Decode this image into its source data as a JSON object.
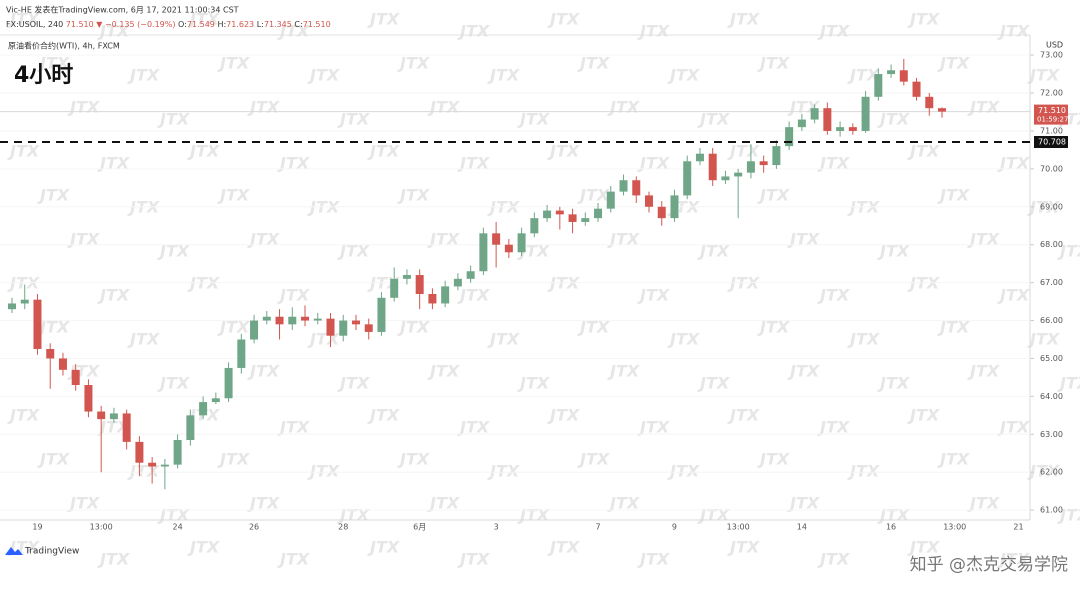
{
  "header": {
    "author_line": "Vic-HE 发表在TradingView.com, 6月 17, 2021 11:00:34 CST",
    "symbol": "FX:USOIL, 240",
    "last": "71.510",
    "change": "▼ −0.135 (−0.19%)",
    "ohlc": [
      {
        "key": "O:",
        "value": "71.549"
      },
      {
        "key": "H:",
        "value": "71.623"
      },
      {
        "key": "L:",
        "value": "71.345"
      },
      {
        "key": "C:",
        "value": "71.510"
      }
    ]
  },
  "chart_data": {
    "type": "candlestick",
    "title": "原油看价合约(WTI), 4h, FXCM",
    "annotation": "4小时",
    "y_axis_label": "USD",
    "watermark": "JTX",
    "up_color": "#6fa687",
    "down_color": "#d2564f",
    "grid": true,
    "categories": [
      null,
      null,
      "19",
      null,
      null,
      null,
      null,
      "13:00",
      null,
      null,
      null,
      null,
      null,
      "24",
      null,
      null,
      null,
      null,
      null,
      "26",
      null,
      null,
      null,
      null,
      null,
      null,
      "28",
      null,
      null,
      null,
      null,
      null,
      "6月",
      null,
      null,
      null,
      null,
      null,
      "3",
      null,
      null,
      null,
      null,
      null,
      null,
      null,
      "7",
      null,
      null,
      null,
      null,
      null,
      "9",
      null,
      null,
      null,
      null,
      "13:00",
      null,
      null,
      null,
      null,
      "14",
      null,
      null,
      null,
      null,
      null,
      null,
      "16",
      null,
      null,
      null,
      null
    ],
    "future_categories": [
      "13:00",
      null,
      null,
      null,
      null,
      "21"
    ],
    "open": [
      66.3,
      66.45,
      66.55,
      65.25,
      65.0,
      64.7,
      64.3,
      63.6,
      63.4,
      63.55,
      62.8,
      62.25,
      62.15,
      62.2,
      62.85,
      63.5,
      63.85,
      63.95,
      64.75,
      65.5,
      66.0,
      66.1,
      65.9,
      66.1,
      66.0,
      66.05,
      65.6,
      66.0,
      65.9,
      65.7,
      66.6,
      67.1,
      67.2,
      66.7,
      66.45,
      66.9,
      67.1,
      67.3,
      68.3,
      68.0,
      67.8,
      68.3,
      68.7,
      68.9,
      68.8,
      68.6,
      68.7,
      68.95,
      69.4,
      69.7,
      69.3,
      69.0,
      68.7,
      69.3,
      70.2,
      70.4,
      69.7,
      69.8,
      69.9,
      70.2,
      70.1,
      70.6,
      71.1,
      71.3,
      71.6,
      71.0,
      71.1,
      71.0,
      71.9,
      72.5,
      72.6,
      72.3,
      71.9,
      71.6
    ],
    "high": [
      66.6,
      66.95,
      66.7,
      65.4,
      65.15,
      64.85,
      64.45,
      63.75,
      63.7,
      63.65,
      62.95,
      62.4,
      62.35,
      63.0,
      63.65,
      64.0,
      64.1,
      64.9,
      65.65,
      66.15,
      66.25,
      66.3,
      66.35,
      66.4,
      66.2,
      66.2,
      66.15,
      66.15,
      66.05,
      66.75,
      67.4,
      67.35,
      67.35,
      66.85,
      67.05,
      67.25,
      67.45,
      68.45,
      68.6,
      68.15,
      68.45,
      68.85,
      69.05,
      69.0,
      68.95,
      68.85,
      69.1,
      69.55,
      69.85,
      69.8,
      69.4,
      69.15,
      69.45,
      70.35,
      70.55,
      70.55,
      69.95,
      70.0,
      70.65,
      70.35,
      70.75,
      71.25,
      71.45,
      71.7,
      71.75,
      71.25,
      71.2,
      72.05,
      72.65,
      72.75,
      72.9,
      72.4,
      72.0,
      71.62
    ],
    "low": [
      66.2,
      66.3,
      65.1,
      64.2,
      64.55,
      64.15,
      63.45,
      62.0,
      63.3,
      62.6,
      61.9,
      61.7,
      61.55,
      62.1,
      62.7,
      63.4,
      63.8,
      63.85,
      64.6,
      65.4,
      65.9,
      65.5,
      65.75,
      65.85,
      65.9,
      65.3,
      65.45,
      65.75,
      65.5,
      65.6,
      66.5,
      66.95,
      66.3,
      66.3,
      66.35,
      66.8,
      67.0,
      67.2,
      67.4,
      67.65,
      67.7,
      68.2,
      68.6,
      68.4,
      68.3,
      68.5,
      68.6,
      68.85,
      69.3,
      69.1,
      68.85,
      68.5,
      68.6,
      69.2,
      70.1,
      69.55,
      69.6,
      68.7,
      69.75,
      69.9,
      70.0,
      70.5,
      71.0,
      71.2,
      70.9,
      70.85,
      70.9,
      70.95,
      71.8,
      72.4,
      72.2,
      71.8,
      71.4,
      71.35
    ],
    "close": [
      66.45,
      66.55,
      65.25,
      65.0,
      64.7,
      64.3,
      63.6,
      63.4,
      63.55,
      62.8,
      62.25,
      62.15,
      62.2,
      62.85,
      63.5,
      63.85,
      63.95,
      64.75,
      65.5,
      66.0,
      66.1,
      65.9,
      66.1,
      66.0,
      66.05,
      65.6,
      66.0,
      65.9,
      65.7,
      66.6,
      67.1,
      67.2,
      66.7,
      66.45,
      66.9,
      67.1,
      67.3,
      68.3,
      68.0,
      67.8,
      68.3,
      68.7,
      68.9,
      68.8,
      68.6,
      68.7,
      68.95,
      69.4,
      69.7,
      69.3,
      69.0,
      68.7,
      69.3,
      70.2,
      70.4,
      69.7,
      69.8,
      69.9,
      70.2,
      70.1,
      70.6,
      71.1,
      71.3,
      71.6,
      71.0,
      71.1,
      71.0,
      71.9,
      72.5,
      72.6,
      72.3,
      71.9,
      71.6,
      71.51
    ],
    "ylim": [
      60.74,
      73.53
    ],
    "yticks": [
      {
        "value": 61,
        "label": "61.00"
      },
      {
        "value": 62,
        "label": "62.00"
      },
      {
        "value": 63,
        "label": "63.00"
      },
      {
        "value": 64,
        "label": "64.00"
      },
      {
        "value": 65,
        "label": "65.00"
      },
      {
        "value": 66,
        "label": "66.00"
      },
      {
        "value": 67,
        "label": "67.00"
      },
      {
        "value": 68,
        "label": "68.00"
      },
      {
        "value": 69,
        "label": "69.00"
      },
      {
        "value": 70,
        "label": "70.00"
      },
      {
        "value": 71,
        "label": "71.00"
      },
      {
        "value": 72,
        "label": "72.00"
      },
      {
        "value": 73,
        "label": "73.00"
      }
    ],
    "last_price": {
      "value": 71.51,
      "label": "71.510"
    },
    "countdown": "01:59:27",
    "hline": {
      "value": 70.708,
      "label": "70.708"
    }
  },
  "footer": {
    "brand": "TradingView",
    "credit": "知乎 @杰克交易学院"
  }
}
